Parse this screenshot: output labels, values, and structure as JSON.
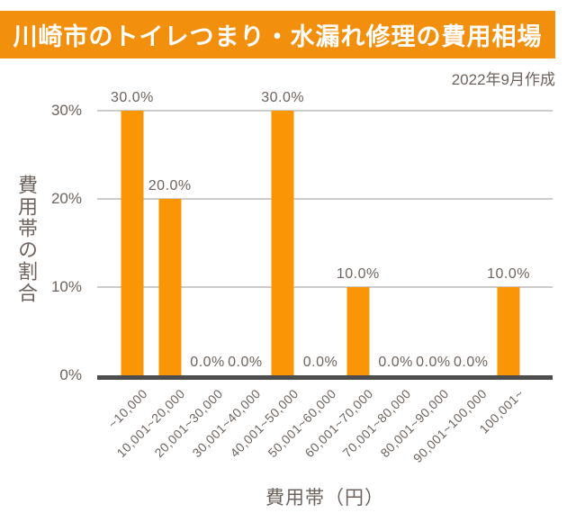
{
  "header": {
    "title": "川崎市のトイレつまり・水漏れ修理の費用相場",
    "created": "2022年9月作成"
  },
  "colors": {
    "banner": "#F2900D",
    "bar": "#FA9506",
    "text": "#6E635C",
    "grid": "#CCCCCC",
    "axis": "#4D4D4D",
    "banner_text": "#FFFFFF"
  },
  "chart_data": {
    "type": "bar",
    "title": "川崎市のトイレつまり・水漏れ修理の費用相場",
    "subtitle": "2022年9月作成",
    "categories": [
      "~10,000",
      "10,001~20,000",
      "20,001~30,000",
      "30,001~40,000",
      "40,001~50,000",
      "50,001~60,000",
      "60,001~70,000",
      "70,001~80,000",
      "80,001~90,000",
      "90,001~100,000",
      "100,001~"
    ],
    "values": [
      30.0,
      20.0,
      0.0,
      0.0,
      30.0,
      0.0,
      10.0,
      0.0,
      0.0,
      0.0,
      10.0
    ],
    "value_labels": [
      "30.0%",
      "20.0%",
      "0.0%",
      "0.0%",
      "30.0%",
      "0.0%",
      "10.0%",
      "0.0%",
      "0.0%",
      "0.0%",
      "10.0%"
    ],
    "xlabel": "費用帯（円）",
    "ylabel": "費用帯の割合",
    "yticks": [
      "0%",
      "10%",
      "20%",
      "30%"
    ],
    "ylim": [
      0,
      30
    ],
    "grid": true,
    "legend": false,
    "bar_color": "#FA9506"
  }
}
